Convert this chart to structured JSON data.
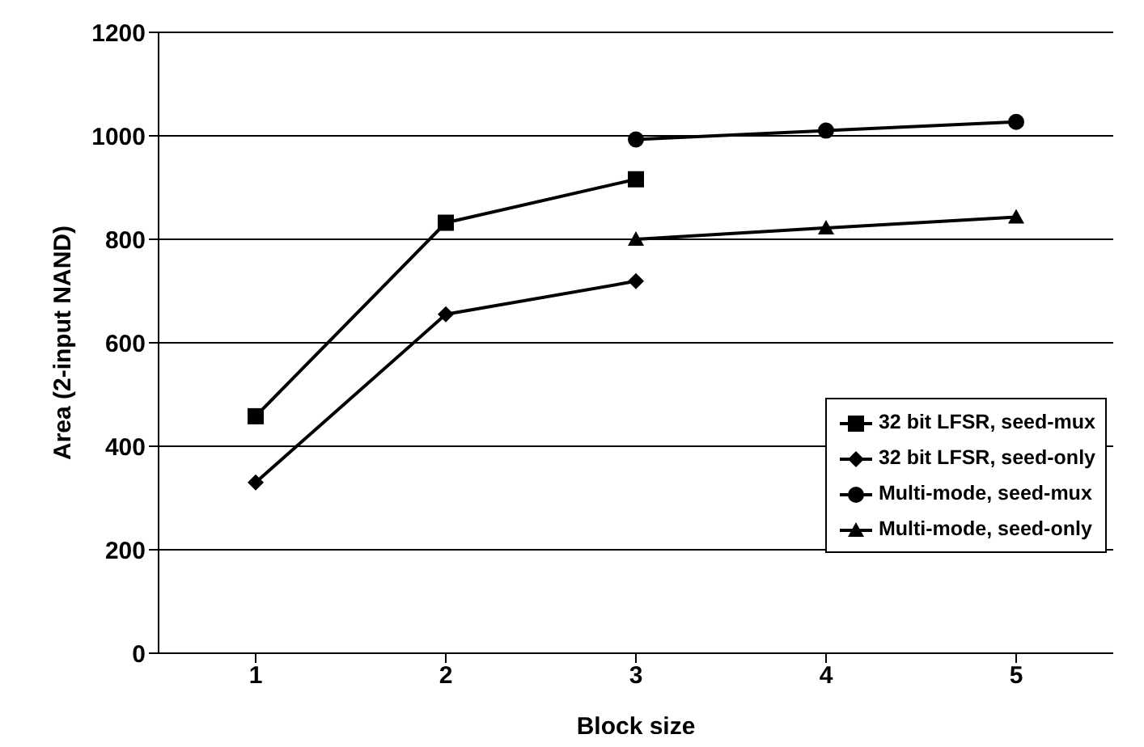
{
  "chart_data": {
    "type": "line",
    "xlabel": "Block size",
    "ylabel": "Area (2-input NAND)",
    "categories": [
      "1",
      "2",
      "3",
      "4",
      "5"
    ],
    "series": [
      {
        "name": "32 bit LFSR, seed-mux",
        "color": "#000000",
        "marker": "square",
        "values": [
          458,
          832,
          916,
          null,
          null
        ]
      },
      {
        "name": "32 bit LFSR, seed-only",
        "color": "#000000",
        "marker": "diamond",
        "values": [
          330,
          655,
          719,
          null,
          null
        ]
      },
      {
        "name": "Multi-mode, seed-mux",
        "color": "#000000",
        "marker": "circle",
        "values": [
          null,
          null,
          993,
          1010,
          1027
        ]
      },
      {
        "name": "Multi-mode, seed-only",
        "color": "#000000",
        "marker": "triangle",
        "values": [
          null,
          null,
          800,
          822,
          843
        ]
      }
    ],
    "ylim": [
      0,
      1200
    ],
    "yticks": [
      0,
      200,
      400,
      600,
      800,
      1000,
      1200
    ],
    "grid": "y",
    "legend": "right",
    "line_style": "solid"
  }
}
